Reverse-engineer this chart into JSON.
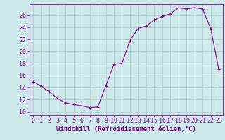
{
  "x": [
    0,
    1,
    2,
    3,
    4,
    5,
    6,
    7,
    8,
    9,
    10,
    11,
    12,
    13,
    14,
    15,
    16,
    17,
    18,
    19,
    20,
    21,
    22,
    23
  ],
  "y": [
    15.0,
    14.2,
    13.3,
    12.2,
    11.5,
    11.2,
    11.0,
    10.7,
    10.8,
    14.3,
    17.8,
    18.0,
    21.8,
    23.8,
    24.2,
    25.2,
    25.8,
    26.2,
    27.2,
    27.0,
    27.2,
    27.0,
    23.8,
    17.0
  ],
  "line_color": "#880088",
  "marker": "+",
  "bg_color": "#cce8e8",
  "grid_color": "#aacccc",
  "xlabel": "Windchill (Refroidissement éolien,°C)",
  "xlim": [
    -0.5,
    23.5
  ],
  "ylim": [
    9.5,
    27.8
  ],
  "yticks": [
    10,
    12,
    14,
    16,
    18,
    20,
    22,
    24,
    26
  ],
  "xticks": [
    0,
    1,
    2,
    3,
    4,
    5,
    6,
    7,
    8,
    9,
    10,
    11,
    12,
    13,
    14,
    15,
    16,
    17,
    18,
    19,
    20,
    21,
    22,
    23
  ],
  "axis_color": "#880088",
  "tick_color": "#880088",
  "label_fontsize": 6.5,
  "tick_fontsize": 6.0,
  "line_width": 0.8,
  "marker_size": 3.5,
  "marker_edge_width": 0.8
}
